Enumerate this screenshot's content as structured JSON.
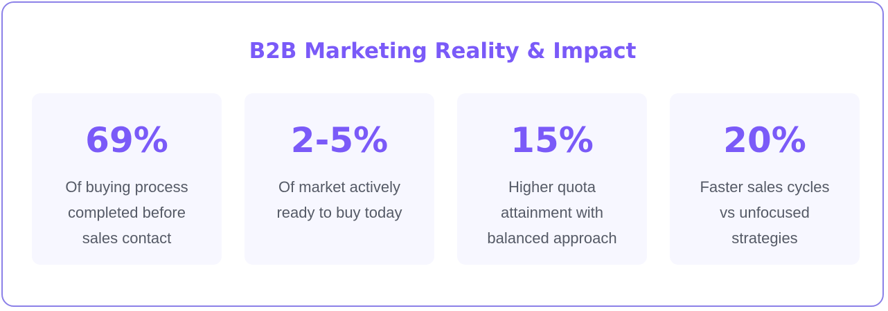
{
  "title": "B2B Marketing Reality & Impact",
  "colors": {
    "accent": "#7a5af8",
    "border": "#8b80e8",
    "card_background": "#f7f7ff",
    "text": "#555a66"
  },
  "stats": [
    {
      "value": "69%",
      "description": "Of buying process completed before sales contact"
    },
    {
      "value": "2-5%",
      "description": "Of market actively ready to buy today"
    },
    {
      "value": "15%",
      "description": "Higher quota attainment with balanced approach"
    },
    {
      "value": "20%",
      "description": "Faster sales cycles vs unfocused strategies"
    }
  ]
}
